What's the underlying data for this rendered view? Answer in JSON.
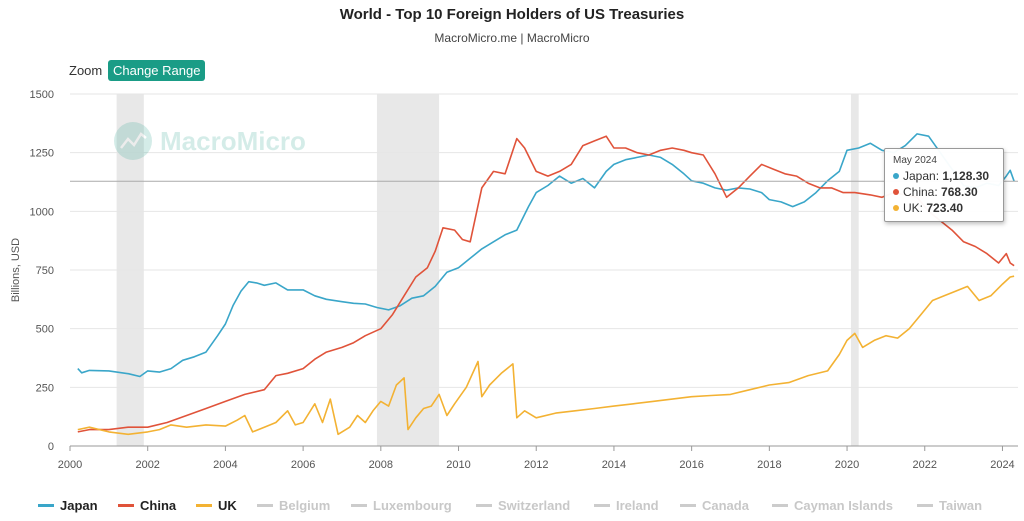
{
  "header": {
    "title": "World - Top 10 Foreign Holders of US Treasuries",
    "subtitle": "MacroMicro.me | MacroMicro"
  },
  "toolbar": {
    "zoom_label": "Zoom",
    "change_range_label": "Change Range"
  },
  "watermark": {
    "text": "MacroMicro",
    "icon": "macromicro-logo-icon"
  },
  "tooltip": {
    "date": "May 2024",
    "rows": [
      {
        "name": "Japan",
        "label": "Japan:",
        "value": "1,128.30",
        "color": "#3aa6c9"
      },
      {
        "name": "China",
        "label": "China:",
        "value": "768.30",
        "color": "#e0533a"
      },
      {
        "name": "UK",
        "label": "UK:",
        "value": "723.40",
        "color": "#f3b233"
      }
    ]
  },
  "chart_data": {
    "type": "line",
    "title": "World - Top 10 Foreign Holders of US Treasuries",
    "subtitle": "MacroMicro.me | MacroMicro",
    "ylabel": "Billions, USD",
    "xlabel": "",
    "ylim": [
      0,
      1500
    ],
    "xlim": [
      2000.0,
      2024.4
    ],
    "yticks": [
      "0",
      "250",
      "500",
      "750",
      "1000",
      "1250",
      "1500"
    ],
    "xticks": [
      "2000",
      "2002",
      "2004",
      "2006",
      "2008",
      "2010",
      "2012",
      "2014",
      "2016",
      "2018",
      "2020",
      "2022",
      "2024"
    ],
    "grid": true,
    "legend_position": "bottom",
    "crosshair_value": 1128.3,
    "recessions": [
      [
        2001.2,
        2001.9
      ],
      [
        2007.9,
        2009.5
      ],
      [
        2020.1,
        2020.3
      ]
    ],
    "series": [
      {
        "name": "Japan",
        "color": "#3aa6c9",
        "points": [
          [
            2000.2,
            330
          ],
          [
            2000.3,
            312
          ],
          [
            2000.5,
            322
          ],
          [
            2001.0,
            320
          ],
          [
            2001.5,
            308
          ],
          [
            2001.8,
            296
          ],
          [
            2002.0,
            320
          ],
          [
            2002.3,
            315
          ],
          [
            2002.6,
            330
          ],
          [
            2002.9,
            365
          ],
          [
            2003.2,
            380
          ],
          [
            2003.5,
            400
          ],
          [
            2003.8,
            470
          ],
          [
            2004.0,
            520
          ],
          [
            2004.2,
            600
          ],
          [
            2004.4,
            660
          ],
          [
            2004.6,
            700
          ],
          [
            2004.8,
            695
          ],
          [
            2005.0,
            685
          ],
          [
            2005.3,
            695
          ],
          [
            2005.6,
            665
          ],
          [
            2006.0,
            665
          ],
          [
            2006.3,
            640
          ],
          [
            2006.6,
            625
          ],
          [
            2007.0,
            615
          ],
          [
            2007.3,
            608
          ],
          [
            2007.6,
            605
          ],
          [
            2007.9,
            590
          ],
          [
            2008.2,
            580
          ],
          [
            2008.5,
            598
          ],
          [
            2008.8,
            630
          ],
          [
            2009.1,
            640
          ],
          [
            2009.4,
            680
          ],
          [
            2009.7,
            740
          ],
          [
            2010.0,
            760
          ],
          [
            2010.3,
            800
          ],
          [
            2010.6,
            840
          ],
          [
            2010.9,
            870
          ],
          [
            2011.2,
            900
          ],
          [
            2011.5,
            920
          ],
          [
            2011.8,
            1020
          ],
          [
            2012.0,
            1080
          ],
          [
            2012.3,
            1110
          ],
          [
            2012.6,
            1150
          ],
          [
            2012.9,
            1120
          ],
          [
            2013.2,
            1140
          ],
          [
            2013.5,
            1100
          ],
          [
            2013.8,
            1170
          ],
          [
            2014.0,
            1200
          ],
          [
            2014.3,
            1220
          ],
          [
            2014.6,
            1230
          ],
          [
            2014.9,
            1240
          ],
          [
            2015.2,
            1230
          ],
          [
            2015.5,
            1200
          ],
          [
            2015.8,
            1160
          ],
          [
            2016.0,
            1130
          ],
          [
            2016.3,
            1120
          ],
          [
            2016.6,
            1100
          ],
          [
            2016.9,
            1090
          ],
          [
            2017.2,
            1100
          ],
          [
            2017.5,
            1095
          ],
          [
            2017.8,
            1080
          ],
          [
            2018.0,
            1050
          ],
          [
            2018.3,
            1040
          ],
          [
            2018.6,
            1020
          ],
          [
            2018.9,
            1040
          ],
          [
            2019.2,
            1080
          ],
          [
            2019.5,
            1130
          ],
          [
            2019.8,
            1170
          ],
          [
            2020.0,
            1260
          ],
          [
            2020.3,
            1270
          ],
          [
            2020.6,
            1290
          ],
          [
            2020.9,
            1260
          ],
          [
            2021.2,
            1250
          ],
          [
            2021.5,
            1280
          ],
          [
            2021.8,
            1330
          ],
          [
            2022.1,
            1320
          ],
          [
            2022.4,
            1250
          ],
          [
            2022.7,
            1180
          ],
          [
            2023.0,
            1110
          ],
          [
            2023.3,
            1100
          ],
          [
            2023.6,
            1120
          ],
          [
            2023.9,
            1110
          ],
          [
            2024.1,
            1150
          ],
          [
            2024.2,
            1175
          ],
          [
            2024.3,
            1128.3
          ]
        ]
      },
      {
        "name": "China",
        "color": "#e0533a",
        "points": [
          [
            2000.2,
            60
          ],
          [
            2000.5,
            70
          ],
          [
            2001.0,
            70
          ],
          [
            2001.5,
            80
          ],
          [
            2002.0,
            80
          ],
          [
            2002.5,
            100
          ],
          [
            2003.0,
            130
          ],
          [
            2003.5,
            160
          ],
          [
            2004.0,
            190
          ],
          [
            2004.5,
            220
          ],
          [
            2005.0,
            240
          ],
          [
            2005.3,
            300
          ],
          [
            2005.6,
            310
          ],
          [
            2006.0,
            330
          ],
          [
            2006.3,
            370
          ],
          [
            2006.6,
            400
          ],
          [
            2007.0,
            420
          ],
          [
            2007.3,
            440
          ],
          [
            2007.6,
            470
          ],
          [
            2008.0,
            500
          ],
          [
            2008.3,
            560
          ],
          [
            2008.6,
            640
          ],
          [
            2008.9,
            720
          ],
          [
            2009.2,
            760
          ],
          [
            2009.4,
            830
          ],
          [
            2009.6,
            930
          ],
          [
            2009.9,
            920
          ],
          [
            2010.1,
            880
          ],
          [
            2010.3,
            870
          ],
          [
            2010.6,
            1100
          ],
          [
            2010.9,
            1170
          ],
          [
            2011.2,
            1160
          ],
          [
            2011.5,
            1310
          ],
          [
            2011.7,
            1270
          ],
          [
            2012.0,
            1170
          ],
          [
            2012.3,
            1150
          ],
          [
            2012.6,
            1170
          ],
          [
            2012.9,
            1200
          ],
          [
            2013.2,
            1280
          ],
          [
            2013.5,
            1300
          ],
          [
            2013.8,
            1320
          ],
          [
            2014.0,
            1270
          ],
          [
            2014.3,
            1270
          ],
          [
            2014.6,
            1250
          ],
          [
            2014.9,
            1240
          ],
          [
            2015.2,
            1260
          ],
          [
            2015.5,
            1270
          ],
          [
            2015.8,
            1260
          ],
          [
            2016.0,
            1250
          ],
          [
            2016.3,
            1240
          ],
          [
            2016.6,
            1160
          ],
          [
            2016.9,
            1060
          ],
          [
            2017.2,
            1100
          ],
          [
            2017.5,
            1150
          ],
          [
            2017.8,
            1200
          ],
          [
            2018.1,
            1180
          ],
          [
            2018.4,
            1160
          ],
          [
            2018.7,
            1150
          ],
          [
            2019.0,
            1120
          ],
          [
            2019.3,
            1100
          ],
          [
            2019.6,
            1100
          ],
          [
            2019.9,
            1080
          ],
          [
            2020.2,
            1080
          ],
          [
            2020.6,
            1070
          ],
          [
            2020.9,
            1060
          ],
          [
            2021.2,
            1080
          ],
          [
            2021.5,
            1070
          ],
          [
            2021.8,
            1060
          ],
          [
            2022.1,
            1000
          ],
          [
            2022.4,
            960
          ],
          [
            2022.7,
            920
          ],
          [
            2023.0,
            870
          ],
          [
            2023.3,
            850
          ],
          [
            2023.6,
            820
          ],
          [
            2023.9,
            780
          ],
          [
            2024.1,
            820
          ],
          [
            2024.2,
            780
          ],
          [
            2024.3,
            768.3
          ]
        ]
      },
      {
        "name": "UK",
        "color": "#f3b233",
        "points": [
          [
            2000.2,
            70
          ],
          [
            2000.5,
            80
          ],
          [
            2001.0,
            60
          ],
          [
            2001.5,
            50
          ],
          [
            2002.0,
            60
          ],
          [
            2002.3,
            70
          ],
          [
            2002.6,
            90
          ],
          [
            2003.0,
            80
          ],
          [
            2003.5,
            90
          ],
          [
            2004.0,
            85
          ],
          [
            2004.3,
            110
          ],
          [
            2004.5,
            130
          ],
          [
            2004.7,
            60
          ],
          [
            2005.0,
            80
          ],
          [
            2005.3,
            100
          ],
          [
            2005.6,
            150
          ],
          [
            2005.8,
            90
          ],
          [
            2006.0,
            100
          ],
          [
            2006.3,
            180
          ],
          [
            2006.5,
            100
          ],
          [
            2006.7,
            200
          ],
          [
            2006.9,
            50
          ],
          [
            2007.2,
            80
          ],
          [
            2007.4,
            130
          ],
          [
            2007.6,
            100
          ],
          [
            2007.8,
            150
          ],
          [
            2008.0,
            190
          ],
          [
            2008.2,
            170
          ],
          [
            2008.4,
            260
          ],
          [
            2008.6,
            290
          ],
          [
            2008.7,
            70
          ],
          [
            2008.9,
            120
          ],
          [
            2009.1,
            160
          ],
          [
            2009.3,
            170
          ],
          [
            2009.5,
            220
          ],
          [
            2009.7,
            130
          ],
          [
            2009.9,
            180
          ],
          [
            2010.2,
            250
          ],
          [
            2010.5,
            360
          ],
          [
            2010.6,
            210
          ],
          [
            2010.8,
            260
          ],
          [
            2011.1,
            310
          ],
          [
            2011.4,
            350
          ],
          [
            2011.5,
            120
          ],
          [
            2011.7,
            150
          ],
          [
            2012.0,
            120
          ],
          [
            2012.5,
            140
          ],
          [
            2013.0,
            150
          ],
          [
            2013.5,
            160
          ],
          [
            2014.0,
            170
          ],
          [
            2014.5,
            180
          ],
          [
            2015.0,
            190
          ],
          [
            2015.5,
            200
          ],
          [
            2016.0,
            210
          ],
          [
            2016.5,
            215
          ],
          [
            2017.0,
            220
          ],
          [
            2017.5,
            240
          ],
          [
            2018.0,
            260
          ],
          [
            2018.5,
            270
          ],
          [
            2019.0,
            300
          ],
          [
            2019.5,
            320
          ],
          [
            2019.8,
            390
          ],
          [
            2020.0,
            450
          ],
          [
            2020.2,
            480
          ],
          [
            2020.4,
            420
          ],
          [
            2020.7,
            450
          ],
          [
            2021.0,
            470
          ],
          [
            2021.3,
            460
          ],
          [
            2021.6,
            500
          ],
          [
            2021.9,
            560
          ],
          [
            2022.2,
            620
          ],
          [
            2022.5,
            640
          ],
          [
            2022.8,
            660
          ],
          [
            2023.1,
            680
          ],
          [
            2023.4,
            620
          ],
          [
            2023.7,
            640
          ],
          [
            2024.0,
            690
          ],
          [
            2024.2,
            720
          ],
          [
            2024.3,
            723.4
          ]
        ]
      }
    ],
    "legend_entries": [
      {
        "name": "Japan",
        "active": true,
        "color": "#3aa6c9"
      },
      {
        "name": "China",
        "active": true,
        "color": "#e0533a"
      },
      {
        "name": "UK",
        "active": true,
        "color": "#f3b233"
      },
      {
        "name": "Belgium",
        "active": false,
        "color": "#cccccc"
      },
      {
        "name": "Luxembourg",
        "active": false,
        "color": "#cccccc"
      },
      {
        "name": "Switzerland",
        "active": false,
        "color": "#cccccc"
      },
      {
        "name": "Ireland",
        "active": false,
        "color": "#cccccc"
      },
      {
        "name": "Canada",
        "active": false,
        "color": "#cccccc"
      },
      {
        "name": "Cayman Islands",
        "active": false,
        "color": "#cccccc"
      },
      {
        "name": "Taiwan",
        "active": false,
        "color": "#cccccc"
      }
    ]
  }
}
